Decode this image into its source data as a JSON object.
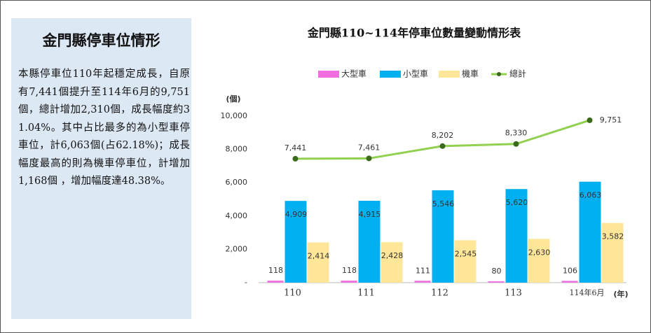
{
  "panel": {
    "title": "金門縣停車位情形",
    "text": "本縣停車位110年起穩定成長，自原有7,441個提升至114年6月的9,751個，總計增加2,310個，成長幅度約31.04%。其中占比最多的為小型車停車位，計6,063個(占62.18%)；成長幅度最高的則為機車停車位，計增加1,168個 ，增加幅度達48.38%。"
  },
  "chart_data": {
    "type": "bar",
    "title": "金門縣110~114年停車位數量變動情形表",
    "y_label": "(個)",
    "x_label": "(年)",
    "categories": [
      "110",
      "111",
      "112",
      "113",
      "114年6月"
    ],
    "ylim": [
      0,
      10000
    ],
    "yticks": [
      {
        "value": 0,
        "label": "-"
      },
      {
        "value": 2000,
        "label": "2,000"
      },
      {
        "value": 4000,
        "label": "4,000"
      },
      {
        "value": 6000,
        "label": "6,000"
      },
      {
        "value": 8000,
        "label": "8,000"
      },
      {
        "value": 10000,
        "label": "10,000"
      }
    ],
    "grid": false,
    "series": [
      {
        "name": "大型車",
        "color": "#f06ee0",
        "type": "bar",
        "values": [
          118,
          118,
          111,
          80,
          106
        ]
      },
      {
        "name": "小型車",
        "color": "#00b0f0",
        "type": "bar",
        "values": [
          4909,
          4915,
          5546,
          5620,
          6063
        ],
        "value_labels": [
          "4,909",
          "4,915",
          "5,546",
          "5,620",
          "6,063"
        ]
      },
      {
        "name": "機車",
        "color": "#ffe699",
        "type": "bar",
        "values": [
          2414,
          2428,
          2545,
          2630,
          3582
        ],
        "value_labels": [
          "2,414",
          "2,428",
          "2,545",
          "2,630",
          "3,582"
        ]
      },
      {
        "name": "總計",
        "color": "#92d050",
        "type": "line",
        "values": [
          7441,
          7461,
          8202,
          8330,
          9751
        ],
        "value_labels": [
          "7,441",
          "7,461",
          "8,202",
          "8,330",
          "9,751"
        ]
      }
    ]
  }
}
